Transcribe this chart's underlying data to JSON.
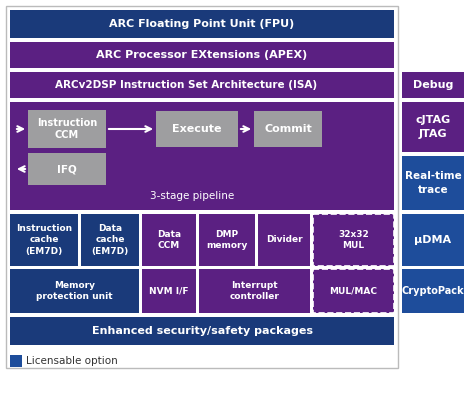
{
  "PURPLE": "#5B2082",
  "BLUE": "#1a3a7a",
  "BLUE_MED": "#1e4d9b",
  "GRAY": "#9E9EA0",
  "WHITE": "#FFFFFF",
  "BG": "#ffffff",
  "fpu_label": "ARC Floating Point Unit (FPU)",
  "apex_label": "ARC Processor EXtensions (APEX)",
  "isa_label": "ARCv2DSP Instruction Set Architecture (ISA)",
  "pipeline_label": "3-stage pipeline",
  "security_label": "Enhanced security/safety packages",
  "debug_label": "Debug",
  "cjtag_label": "cJTAG\nJTAG",
  "rttrace_label": "Real-time\ntrace",
  "udma_label": "μDMA",
  "cryptopack_label": "CryptoPack",
  "instr_ccm_label": "Instruction\nCCM",
  "ifq_label": "IFQ",
  "execute_label": "Execute",
  "commit_label": "Commit",
  "instr_cache_label": "Instruction\ncache\n(EM7D)",
  "data_cache_label": "Data\ncache\n(EM7D)",
  "data_ccm_label": "Data\nCCM",
  "dmp_memory_label": "DMP\nmemory",
  "divider_label": "Divider",
  "mul32_label": "32x32\nMUL",
  "mulmac_label": "MUL/MAC",
  "mem_protect_label": "Memory\nprotection unit",
  "nvm_label": "NVM I/F",
  "int_ctrl_label": "Interrupt\ncontroller",
  "licensable_label": "Licensable option"
}
